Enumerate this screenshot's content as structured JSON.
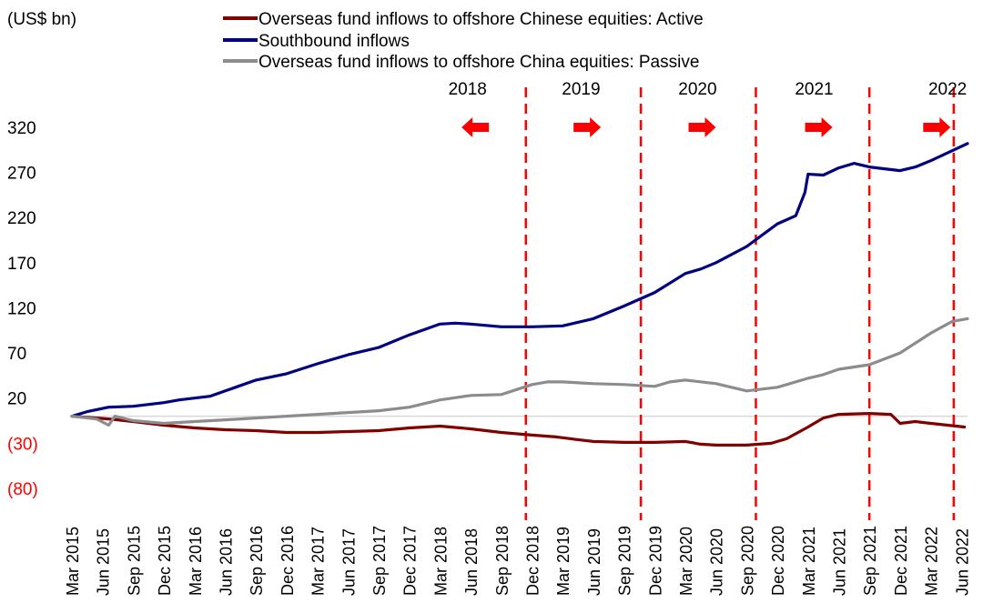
{
  "chart_data": {
    "type": "line",
    "unit_label": "(US$ bn)",
    "ylim": [
      -80,
      330
    ],
    "y_ticks": [
      {
        "value": 320,
        "label": "320"
      },
      {
        "value": 270,
        "label": "270"
      },
      {
        "value": 220,
        "label": "220"
      },
      {
        "value": 170,
        "label": "170"
      },
      {
        "value": 120,
        "label": "120"
      },
      {
        "value": 70,
        "label": "70"
      },
      {
        "value": 20,
        "label": "20"
      },
      {
        "value": -30,
        "label": "(30)"
      },
      {
        "value": -80,
        "label": "(80)"
      }
    ],
    "x_ticks": [
      "Mar 2015",
      "Jun 2015",
      "Sep 2015",
      "Dec 2015",
      "Mar 2016",
      "Jun 2016",
      "Sep 2016",
      "Dec 2016",
      "Mar 2017",
      "Jun 2017",
      "Sep 2017",
      "Dec 2017",
      "Mar 2018",
      "Jun 2018",
      "Sep 2018",
      "Dec 2018",
      "Mar 2019",
      "Jun 2019",
      "Sep 2019",
      "Dec 2019",
      "Mar 2020",
      "Jun 2020",
      "Sep 2020",
      "Dec 2020",
      "Mar 2021",
      "Jun 2021",
      "Sep 2021",
      "Dec 2021",
      "Mar 2022",
      "Jun 2022"
    ],
    "x_range": [
      0,
      29.2
    ],
    "series": [
      {
        "name": "Overseas fund inflows to offshore Chinese equities: Active",
        "color": "#800000",
        "x": [
          0,
          0.8,
          1.2,
          2,
          3,
          4,
          5,
          6,
          7,
          8,
          9,
          10,
          11,
          12,
          13,
          14,
          15,
          15.8,
          16.5,
          17,
          18,
          19,
          20,
          20.5,
          21,
          22,
          22.8,
          23.3,
          24,
          24.5,
          25,
          26,
          26.7,
          27,
          27.5,
          28,
          29.1
        ],
        "values": [
          0,
          -2,
          -3,
          -6,
          -10,
          -13,
          -15,
          -16,
          -18,
          -18,
          -17,
          -16,
          -13,
          -11,
          -14,
          -18,
          -21,
          -23,
          -26,
          -28,
          -29,
          -29,
          -28,
          -31,
          -32,
          -32,
          -30,
          -25,
          -12,
          -2,
          2,
          3,
          2,
          -8,
          -6,
          -8,
          -12
        ]
      },
      {
        "name": "Southbound inflows",
        "color": "#000080",
        "x": [
          0,
          0.5,
          1.2,
          2,
          3,
          3.5,
          4,
          4.5,
          5,
          6,
          7,
          8,
          9,
          10,
          11,
          12,
          12.5,
          13,
          14,
          15,
          16,
          17,
          18,
          19,
          20,
          20.5,
          21,
          22,
          23,
          23.6,
          23.9,
          24,
          24.5,
          25,
          25.5,
          26,
          27,
          27.5,
          28,
          29.2
        ],
        "values": [
          0,
          5,
          10,
          11,
          15,
          18,
          20,
          22,
          28,
          40,
          47,
          58,
          68,
          76,
          90,
          102,
          103,
          102,
          99,
          99,
          100,
          108,
          122,
          137,
          158,
          163,
          170,
          188,
          213,
          222,
          248,
          268,
          267,
          275,
          280,
          276,
          272,
          276,
          283,
          302
        ]
      },
      {
        "name": "Overseas fund inflows to offshore China equities: Passive",
        "color": "#8c8c8c",
        "x": [
          0,
          0.8,
          1.2,
          1.4,
          2,
          3,
          4,
          5,
          6,
          7,
          8,
          9,
          10,
          11,
          12,
          13,
          14,
          15,
          15.5,
          16,
          17,
          18,
          19,
          19.5,
          20,
          21,
          22,
          23,
          24,
          24.5,
          25,
          26,
          27,
          28,
          28.7,
          29.2
        ],
        "values": [
          0,
          -3,
          -10,
          0,
          -5,
          -8,
          -6,
          -4,
          -2,
          0,
          2,
          4,
          6,
          10,
          18,
          23,
          24,
          35,
          38,
          38,
          36,
          35,
          33,
          38,
          40,
          36,
          28,
          32,
          42,
          46,
          52,
          57,
          70,
          92,
          105,
          108
        ]
      }
    ],
    "year_markers": [
      {
        "x": 14.8,
        "label": "2018",
        "arrow": "left",
        "arrow_x": 13.15,
        "label_x": 12.9
      },
      {
        "x": 18.55,
        "label": "2019",
        "arrow": "right",
        "arrow_x": 16.8,
        "label_x": 16.6
      },
      {
        "x": 22.3,
        "label": "2020",
        "arrow": "right",
        "arrow_x": 20.55,
        "label_x": 20.4
      },
      {
        "x": 26.0,
        "label": "2021",
        "arrow": "right",
        "arrow_x": 24.35,
        "label_x": 24.2
      },
      {
        "x": 28.75,
        "label": "2022",
        "arrow": "right",
        "arrow_x": 28.2,
        "label_x": 28.55
      }
    ],
    "marker_color": "#ff0000",
    "negative_label_color": "#ff0000"
  }
}
